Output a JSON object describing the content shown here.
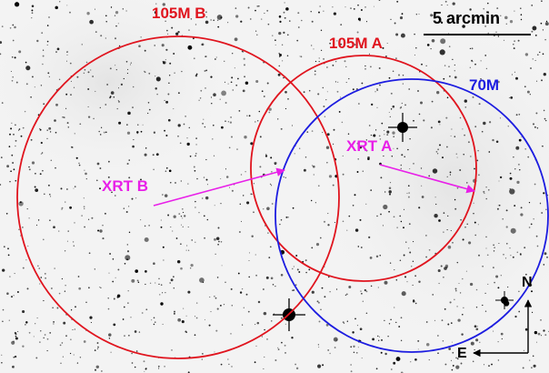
{
  "field_labels": {
    "region_105m_b": "105M B",
    "region_105m_a": "105M A",
    "region_70m": "70M",
    "source_xrt_b": "XRT B",
    "source_xrt_a": "XRT A"
  },
  "scale_bar": {
    "label": "5 arcmin"
  },
  "compass": {
    "north": "N",
    "east": "E"
  },
  "colors": {
    "circle_105m": "#e0141e",
    "circle_70m": "#1c1ce0",
    "xrt_arrows": "#e81fe8",
    "sky_background": "#f3f3f3",
    "stars": "#000000"
  }
}
